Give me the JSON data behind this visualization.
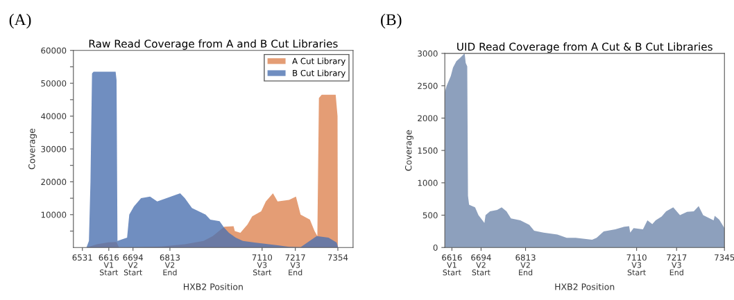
{
  "chart_data": [
    {
      "type": "area",
      "title": "Raw Read Coverage from A and B Cut Libraries",
      "xlabel": "HXB2 Position",
      "ylabel": "Coverage",
      "annotations": [
        "(A)",
        {
          "text": "V1\nStart",
          "x": 6616,
          "y": 0
        },
        {
          "text": "V2\nStart",
          "x": 6694,
          "y": 0
        },
        {
          "text": "V2\nEnd",
          "x": 6813,
          "y": 0
        },
        {
          "text": "V3\nStart",
          "x": 7110,
          "y": 0
        },
        {
          "text": "V3\nEnd",
          "x": 7217,
          "y": 0
        }
      ],
      "xlim": [
        6502,
        7403
      ],
      "ylim": [
        0,
        60000
      ],
      "xticks": [
        6531,
        6616,
        6694,
        6813,
        7110,
        7217,
        7354
      ],
      "yticks": [
        {
          "value": 5000,
          "label": null
        },
        10000,
        {
          "value": 15000,
          "label": null
        },
        20000,
        {
          "value": 25000,
          "label": null
        },
        30000,
        {
          "value": 35000,
          "label": null
        },
        40000,
        {
          "value": 45000,
          "label": null
        },
        50000,
        {
          "value": 55000,
          "label": null
        },
        60000
      ],
      "grid": false,
      "legend": "top right",
      "series": [
        {
          "name": "A Cut Library",
          "color": "#dd8452",
          "x": [
            6544,
            6578,
            6615,
            6641,
            6649,
            6787,
            6861,
            6921,
            6951,
            6988,
            7018,
            7022,
            7040,
            7063,
            7078,
            7107,
            7122,
            7145,
            7160,
            7197,
            7219,
            7234,
            7264,
            7279,
            7288,
            7293,
            7302,
            7347,
            7353,
            7354
          ],
          "values": [
            0,
            1000,
            1600,
            1700,
            0,
            300,
            1000,
            2000,
            3500,
            6300,
            6500,
            5000,
            4500,
            7000,
            9500,
            11000,
            14000,
            16500,
            14000,
            14500,
            15500,
            10000,
            8500,
            5000,
            3500,
            45500,
            46500,
            46500,
            40000,
            0
          ]
        },
        {
          "name": "B Cut Library",
          "color": "#4c72b0",
          "x": [
            6544,
            6552,
            6557,
            6562,
            6567,
            6638,
            6641,
            6644,
            6660,
            6675,
            6682,
            6697,
            6720,
            6749,
            6772,
            6802,
            6846,
            6861,
            6884,
            6906,
            6928,
            6943,
            6973,
            6988,
            7003,
            7025,
            7048,
            7085,
            7160,
            7197,
            7234,
            7286,
            7324,
            7350,
            7355
          ],
          "values": [
            0,
            2000,
            20000,
            53000,
            53500,
            53500,
            51000,
            2000,
            2500,
            3000,
            10000,
            12500,
            15000,
            15500,
            14000,
            15000,
            16500,
            15000,
            12000,
            11000,
            10000,
            8500,
            8000,
            6000,
            4500,
            3000,
            2000,
            1500,
            700,
            200,
            100,
            3500,
            3000,
            1500,
            0
          ]
        }
      ]
    },
    {
      "type": "area",
      "title": "UID Read Coverage from A Cut & B Cut Libraries",
      "xlabel": "HXB2 Position",
      "ylabel": "Coverage",
      "annotations": [
        "(B)",
        {
          "text": "V1\nStart",
          "x": 6616,
          "y": 0
        },
        {
          "text": "V2\nStart",
          "x": 6694,
          "y": 0
        },
        {
          "text": "V2\nEnd",
          "x": 6813,
          "y": 0
        },
        {
          "text": "V3\nStart",
          "x": 7110,
          "y": 0
        },
        {
          "text": "V3\nEnd",
          "x": 7217,
          "y": 0
        }
      ],
      "xlim": [
        6597,
        7345
      ],
      "ylim": [
        0,
        3000
      ],
      "xticks": [
        6616,
        6694,
        6813,
        7110,
        7217,
        7345
      ],
      "yticks": [
        0,
        500,
        1000,
        1500,
        2000,
        2500,
        3000
      ],
      "grid": false,
      "series": [
        {
          "color": "#7088ac",
          "x": [
            6597,
            6602,
            6613,
            6619,
            6628,
            6638,
            6650,
            6653,
            6657,
            6659,
            6662,
            6678,
            6687,
            6703,
            6706,
            6718,
            6737,
            6749,
            6762,
            6774,
            6799,
            6823,
            6836,
            6861,
            6898,
            6923,
            6947,
            6991,
            7003,
            7022,
            7053,
            7077,
            7090,
            7093,
            7102,
            7127,
            7139,
            7152,
            7161,
            7177,
            7189,
            7208,
            7226,
            7245,
            7263,
            7276,
            7288,
            7316,
            7319,
            7331,
            7345
          ],
          "values": [
            2400,
            2500,
            2650,
            2780,
            2880,
            2930,
            3000,
            2850,
            2800,
            800,
            660,
            620,
            500,
            380,
            500,
            560,
            580,
            620,
            560,
            450,
            420,
            350,
            260,
            230,
            200,
            150,
            150,
            120,
            150,
            250,
            280,
            320,
            330,
            230,
            300,
            280,
            420,
            360,
            420,
            480,
            560,
            620,
            500,
            550,
            560,
            640,
            500,
            420,
            490,
            430,
            300
          ]
        }
      ]
    }
  ]
}
